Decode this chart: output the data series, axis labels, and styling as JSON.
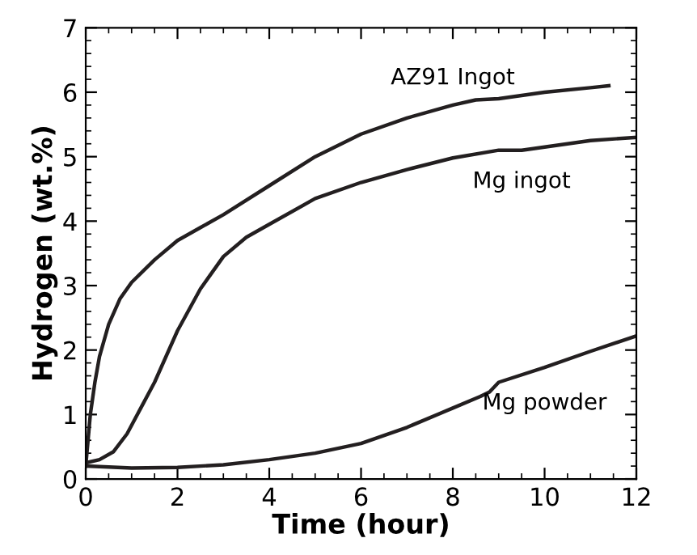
{
  "chart_data": {
    "type": "line",
    "xlabel": "Time (hour)",
    "ylabel": "Hydrogen (wt.%)",
    "xlim": [
      0,
      12
    ],
    "ylim": [
      0,
      7
    ],
    "xticks": [
      0,
      2,
      4,
      6,
      8,
      10,
      12
    ],
    "yticks": [
      0,
      1,
      2,
      3,
      4,
      5,
      6,
      7
    ],
    "grid": false,
    "legend": false,
    "marker": "none",
    "line_style": "solid",
    "series": [
      {
        "name": "AZ91 Ingot",
        "color": "#231f20",
        "x": [
          0,
          0.05,
          0.1,
          0.2,
          0.3,
          0.5,
          0.75,
          1,
          1.5,
          2,
          2.5,
          3,
          4,
          5,
          6,
          7,
          8,
          8.5,
          9,
          10,
          11,
          11.4
        ],
        "values": [
          0.2,
          0.6,
          1.0,
          1.5,
          1.9,
          2.4,
          2.8,
          3.05,
          3.4,
          3.7,
          3.9,
          4.1,
          4.55,
          5.0,
          5.35,
          5.6,
          5.8,
          5.88,
          5.9,
          6.0,
          6.07,
          6.1
        ]
      },
      {
        "name": "Mg ingot",
        "color": "#231f20",
        "x": [
          0,
          0.3,
          0.6,
          0.9,
          1.2,
          1.5,
          2,
          2.5,
          3,
          3.5,
          4,
          5,
          6,
          7,
          8,
          9,
          9.5,
          10,
          11,
          12
        ],
        "values": [
          0.25,
          0.3,
          0.42,
          0.7,
          1.1,
          1.5,
          2.3,
          2.95,
          3.45,
          3.75,
          3.95,
          4.35,
          4.6,
          4.8,
          4.98,
          5.1,
          5.1,
          5.15,
          5.25,
          5.3
        ]
      },
      {
        "name": "Mg powder",
        "color": "#231f20",
        "x": [
          0,
          1,
          2,
          3,
          4,
          5,
          6,
          7,
          8,
          8.6,
          8.8,
          9,
          10,
          11,
          12
        ],
        "values": [
          0.2,
          0.17,
          0.18,
          0.22,
          0.3,
          0.4,
          0.55,
          0.8,
          1.1,
          1.28,
          1.35,
          1.5,
          1.73,
          1.98,
          2.22
        ]
      }
    ]
  }
}
